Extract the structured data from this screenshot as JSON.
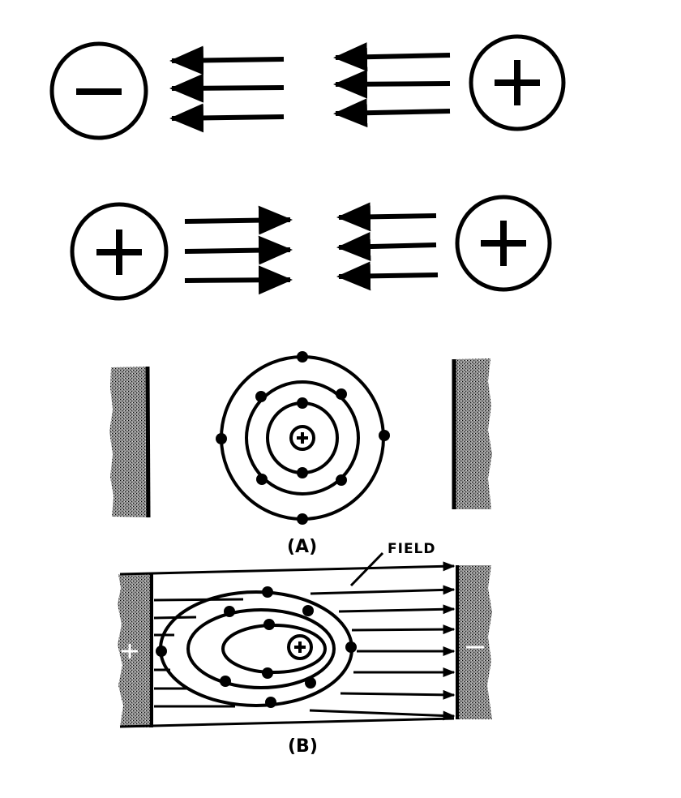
{
  "charges": {
    "top_left": "−",
    "top_right": "+",
    "middle_left": "+",
    "middle_right": "+",
    "nucleus_a": "+",
    "nucleus_b": "+"
  },
  "labels": {
    "a": "(A)",
    "b": "(B)",
    "field": "FIELD"
  },
  "colors": {
    "ink": "#000000",
    "plate_fill": "#9a9a9a"
  }
}
